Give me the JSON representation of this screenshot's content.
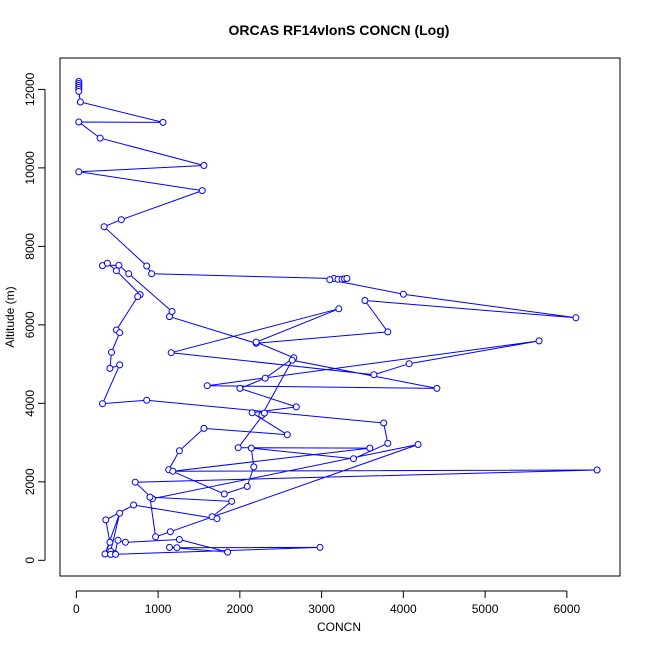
{
  "chart_data": {
    "type": "line",
    "title": "ORCAS RF14vlonS CONCN (Log)",
    "xlabel": "CONCN",
    "ylabel": "Altitude (m)",
    "xlim": [
      -200,
      6650
    ],
    "ylim": [
      -400,
      12800
    ],
    "x_ticks": [
      0,
      1000,
      2000,
      3000,
      4000,
      5000,
      6000
    ],
    "y_ticks": [
      0,
      2000,
      4000,
      6000,
      8000,
      10000,
      12000
    ],
    "grid": false,
    "markers": "open-circle",
    "color": "#0000ff",
    "points": [
      [
        30,
        12200
      ],
      [
        30,
        12150
      ],
      [
        30,
        12100
      ],
      [
        30,
        12050
      ],
      [
        30,
        12000
      ],
      [
        30,
        11950
      ],
      [
        50,
        11680
      ],
      [
        1060,
        11160
      ],
      [
        30,
        11170
      ],
      [
        290,
        10760
      ],
      [
        1560,
        10060
      ],
      [
        30,
        9900
      ],
      [
        1540,
        9420
      ],
      [
        550,
        8680
      ],
      [
        340,
        8500
      ],
      [
        860,
        7500
      ],
      [
        920,
        7300
      ],
      [
        3150,
        7180
      ],
      [
        3200,
        7160
      ],
      [
        3250,
        7160
      ],
      [
        3280,
        7170
      ],
      [
        3310,
        7180
      ],
      [
        3100,
        7150
      ],
      [
        4000,
        6780
      ],
      [
        6110,
        6180
      ],
      [
        3530,
        6620
      ],
      [
        3810,
        5820
      ],
      [
        2200,
        5530
      ],
      [
        1140,
        6210
      ],
      [
        1170,
        6340
      ],
      [
        640,
        7300
      ],
      [
        520,
        7520
      ],
      [
        320,
        7510
      ],
      [
        380,
        7570
      ],
      [
        490,
        7380
      ],
      [
        780,
        6770
      ],
      [
        750,
        6720
      ],
      [
        490,
        5870
      ],
      [
        530,
        5800
      ],
      [
        430,
        5300
      ],
      [
        410,
        4890
      ],
      [
        530,
        4980
      ],
      [
        320,
        3990
      ],
      [
        860,
        4080
      ],
      [
        3760,
        3500
      ],
      [
        3810,
        2980
      ],
      [
        3390,
        2590
      ],
      [
        2140,
        2860
      ],
      [
        2170,
        2380
      ],
      [
        2090,
        1880
      ],
      [
        1810,
        1690
      ],
      [
        1130,
        2310
      ],
      [
        1260,
        2790
      ],
      [
        1560,
        3360
      ],
      [
        2580,
        3200
      ],
      [
        2150,
        3760
      ],
      [
        2690,
        3910
      ],
      [
        2000,
        4380
      ],
      [
        2310,
        4640
      ],
      [
        2660,
        5160
      ],
      [
        2200,
        5560
      ],
      [
        3210,
        6410
      ],
      [
        1160,
        5290
      ],
      [
        3640,
        4730
      ],
      [
        4070,
        5010
      ],
      [
        5660,
        5590
      ],
      [
        1600,
        4450
      ],
      [
        4410,
        4380
      ],
      [
        2640,
        5100
      ],
      [
        2270,
        3700
      ],
      [
        2300,
        3750
      ],
      [
        1980,
        2870
      ],
      [
        3590,
        2860
      ],
      [
        1180,
        2270
      ],
      [
        6370,
        2300
      ],
      [
        720,
        1990
      ],
      [
        930,
        1570
      ],
      [
        4180,
        2950
      ],
      [
        1150,
        730
      ],
      [
        970,
        600
      ],
      [
        900,
        1610
      ],
      [
        1900,
        1500
      ],
      [
        1660,
        1110
      ],
      [
        1720,
        1060
      ],
      [
        700,
        1410
      ],
      [
        360,
        1030
      ],
      [
        410,
        460
      ],
      [
        350,
        160
      ],
      [
        530,
        1200
      ],
      [
        420,
        230
      ],
      [
        470,
        170
      ],
      [
        510,
        510
      ],
      [
        600,
        460
      ],
      [
        1260,
        530
      ],
      [
        1850,
        210
      ],
      [
        1140,
        330
      ],
      [
        1230,
        320
      ],
      [
        2980,
        330
      ],
      [
        420,
        150
      ],
      [
        480,
        150
      ]
    ]
  }
}
